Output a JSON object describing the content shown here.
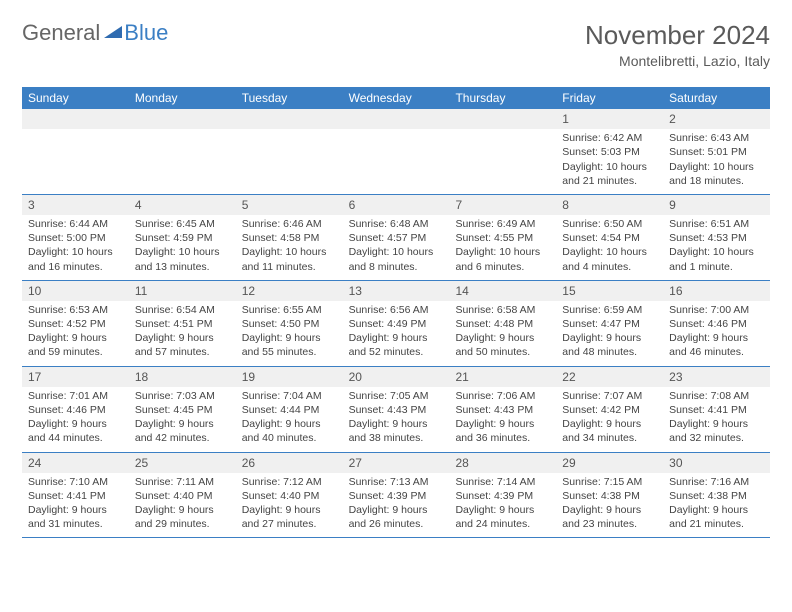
{
  "logo": {
    "text1": "General",
    "text2": "Blue"
  },
  "title": {
    "month": "November 2024",
    "location": "Montelibretti, Lazio, Italy"
  },
  "weekdays": [
    "Sunday",
    "Monday",
    "Tuesday",
    "Wednesday",
    "Thursday",
    "Friday",
    "Saturday"
  ],
  "labels": {
    "sunrise": "Sunrise:",
    "sunset": "Sunset:",
    "daylight": "Daylight:"
  },
  "colors": {
    "header_bg": "#3b7fc4",
    "header_fg": "#ffffff",
    "text": "#444444",
    "divider": "#3b7fc4",
    "daynum_bg": "#f0f0f0"
  },
  "weeks": [
    [
      null,
      null,
      null,
      null,
      null,
      {
        "n": "1",
        "sr": "6:42 AM",
        "ss": "5:03 PM",
        "dl": "10 hours and 21 minutes."
      },
      {
        "n": "2",
        "sr": "6:43 AM",
        "ss": "5:01 PM",
        "dl": "10 hours and 18 minutes."
      }
    ],
    [
      {
        "n": "3",
        "sr": "6:44 AM",
        "ss": "5:00 PM",
        "dl": "10 hours and 16 minutes."
      },
      {
        "n": "4",
        "sr": "6:45 AM",
        "ss": "4:59 PM",
        "dl": "10 hours and 13 minutes."
      },
      {
        "n": "5",
        "sr": "6:46 AM",
        "ss": "4:58 PM",
        "dl": "10 hours and 11 minutes."
      },
      {
        "n": "6",
        "sr": "6:48 AM",
        "ss": "4:57 PM",
        "dl": "10 hours and 8 minutes."
      },
      {
        "n": "7",
        "sr": "6:49 AM",
        "ss": "4:55 PM",
        "dl": "10 hours and 6 minutes."
      },
      {
        "n": "8",
        "sr": "6:50 AM",
        "ss": "4:54 PM",
        "dl": "10 hours and 4 minutes."
      },
      {
        "n": "9",
        "sr": "6:51 AM",
        "ss": "4:53 PM",
        "dl": "10 hours and 1 minute."
      }
    ],
    [
      {
        "n": "10",
        "sr": "6:53 AM",
        "ss": "4:52 PM",
        "dl": "9 hours and 59 minutes."
      },
      {
        "n": "11",
        "sr": "6:54 AM",
        "ss": "4:51 PM",
        "dl": "9 hours and 57 minutes."
      },
      {
        "n": "12",
        "sr": "6:55 AM",
        "ss": "4:50 PM",
        "dl": "9 hours and 55 minutes."
      },
      {
        "n": "13",
        "sr": "6:56 AM",
        "ss": "4:49 PM",
        "dl": "9 hours and 52 minutes."
      },
      {
        "n": "14",
        "sr": "6:58 AM",
        "ss": "4:48 PM",
        "dl": "9 hours and 50 minutes."
      },
      {
        "n": "15",
        "sr": "6:59 AM",
        "ss": "4:47 PM",
        "dl": "9 hours and 48 minutes."
      },
      {
        "n": "16",
        "sr": "7:00 AM",
        "ss": "4:46 PM",
        "dl": "9 hours and 46 minutes."
      }
    ],
    [
      {
        "n": "17",
        "sr": "7:01 AM",
        "ss": "4:46 PM",
        "dl": "9 hours and 44 minutes."
      },
      {
        "n": "18",
        "sr": "7:03 AM",
        "ss": "4:45 PM",
        "dl": "9 hours and 42 minutes."
      },
      {
        "n": "19",
        "sr": "7:04 AM",
        "ss": "4:44 PM",
        "dl": "9 hours and 40 minutes."
      },
      {
        "n": "20",
        "sr": "7:05 AM",
        "ss": "4:43 PM",
        "dl": "9 hours and 38 minutes."
      },
      {
        "n": "21",
        "sr": "7:06 AM",
        "ss": "4:43 PM",
        "dl": "9 hours and 36 minutes."
      },
      {
        "n": "22",
        "sr": "7:07 AM",
        "ss": "4:42 PM",
        "dl": "9 hours and 34 minutes."
      },
      {
        "n": "23",
        "sr": "7:08 AM",
        "ss": "4:41 PM",
        "dl": "9 hours and 32 minutes."
      }
    ],
    [
      {
        "n": "24",
        "sr": "7:10 AM",
        "ss": "4:41 PM",
        "dl": "9 hours and 31 minutes."
      },
      {
        "n": "25",
        "sr": "7:11 AM",
        "ss": "4:40 PM",
        "dl": "9 hours and 29 minutes."
      },
      {
        "n": "26",
        "sr": "7:12 AM",
        "ss": "4:40 PM",
        "dl": "9 hours and 27 minutes."
      },
      {
        "n": "27",
        "sr": "7:13 AM",
        "ss": "4:39 PM",
        "dl": "9 hours and 26 minutes."
      },
      {
        "n": "28",
        "sr": "7:14 AM",
        "ss": "4:39 PM",
        "dl": "9 hours and 24 minutes."
      },
      {
        "n": "29",
        "sr": "7:15 AM",
        "ss": "4:38 PM",
        "dl": "9 hours and 23 minutes."
      },
      {
        "n": "30",
        "sr": "7:16 AM",
        "ss": "4:38 PM",
        "dl": "9 hours and 21 minutes."
      }
    ]
  ]
}
